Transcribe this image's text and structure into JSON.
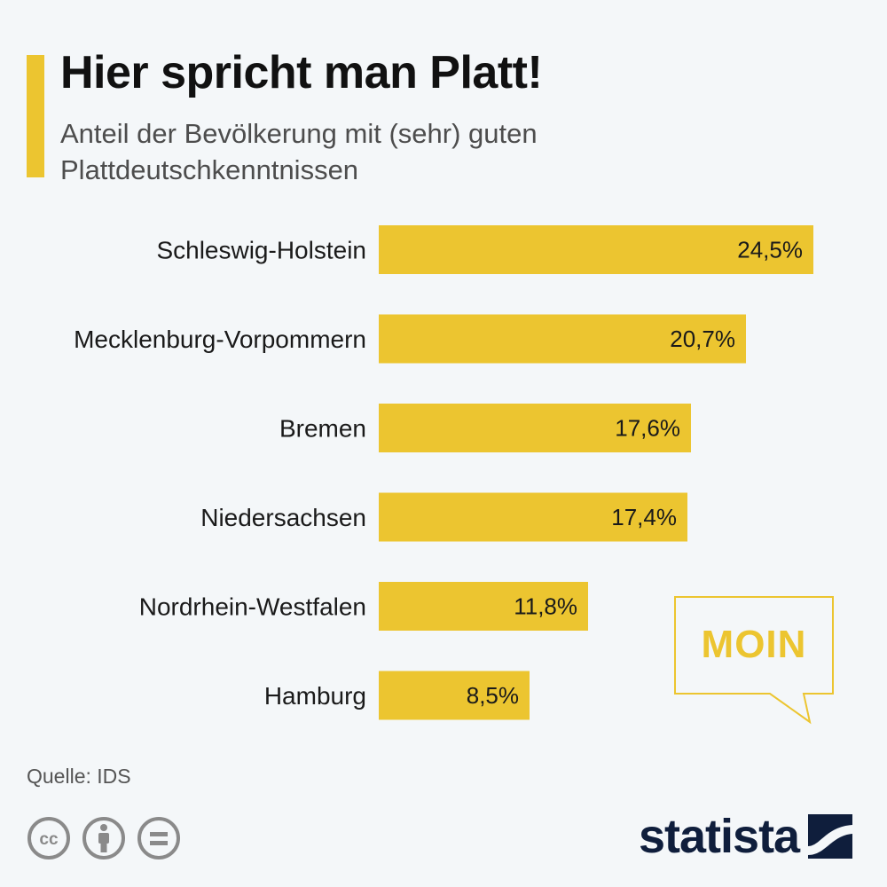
{
  "title": "Hier spricht man Platt!",
  "subtitle": "Anteil der Bevölkerung mit (sehr) guten Plattdeutschkenntnissen",
  "chart_data": {
    "type": "bar",
    "orientation": "horizontal",
    "categories": [
      "Schleswig-Holstein",
      "Mecklenburg-Vorpommern",
      "Bremen",
      "Niedersachsen",
      "Nordrhein-Westfalen",
      "Hamburg"
    ],
    "values": [
      24.5,
      20.7,
      17.6,
      17.4,
      11.8,
      8.5
    ],
    "value_labels": [
      "24,5%",
      "20,7%",
      "17,6%",
      "17,4%",
      "11,8%",
      "8,5%"
    ],
    "unit": "%",
    "xlim": [
      0,
      24.5
    ],
    "bar_color": "#ecc530"
  },
  "bubble": {
    "text": "MOIN"
  },
  "source": "Quelle: IDS",
  "license_icons": [
    "cc-icon",
    "by-icon",
    "nd-icon"
  ],
  "brand": {
    "name": "statista"
  },
  "colors": {
    "accent": "#ecc530",
    "brand": "#0f1e3c",
    "background": "#f4f7f9"
  }
}
